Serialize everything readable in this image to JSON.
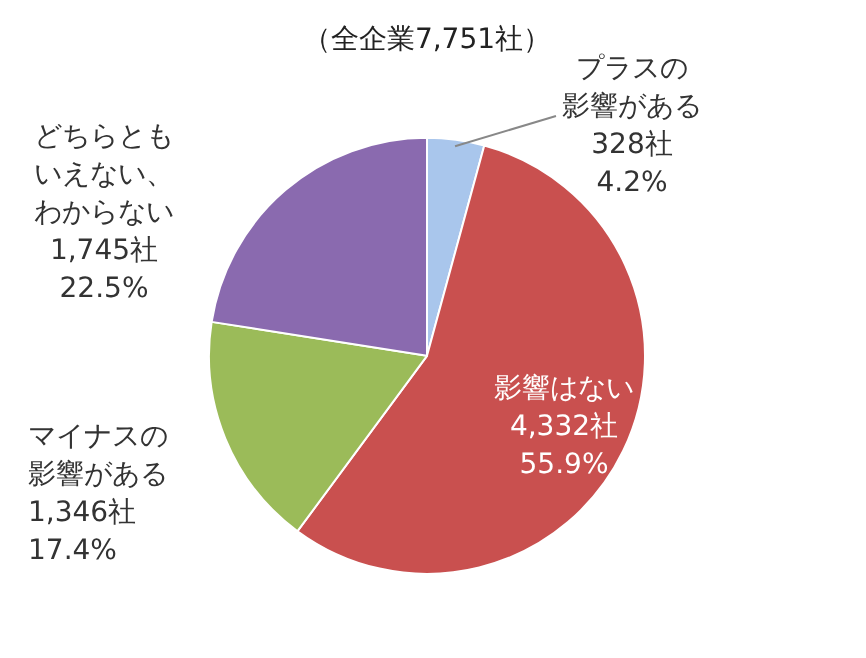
{
  "chart_data": {
    "type": "pie",
    "title": "（全企業7,751社）",
    "categories": [
      "プラスの影響がある",
      "影響はない",
      "マイナスの影響がある",
      "どちらともいえない、わからない"
    ],
    "values": [
      328,
      4332,
      1346,
      1745
    ],
    "colors": [
      "#a9c6ec",
      "#c9504f",
      "#9bbb59",
      "#8a6aaf"
    ],
    "value_labels": [
      "328社\n4.2%",
      "4,332社\n55.9%",
      "1,346社\n17.4%",
      "1,745社\n22.5%"
    ],
    "legend": false
  }
}
